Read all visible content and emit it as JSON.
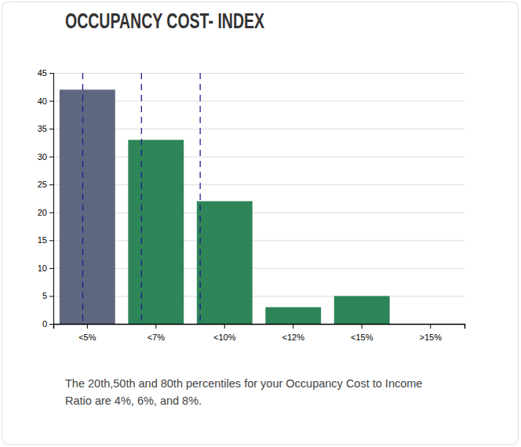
{
  "chart_data": {
    "type": "bar",
    "title": "OCCUPANCY COST- INDEX",
    "categories": [
      "<5%",
      "<7%",
      "<10%",
      "<12%",
      "<15%",
      ">15%"
    ],
    "values": [
      42,
      33,
      22,
      3,
      5,
      0
    ],
    "colors": [
      "#5f6780",
      "#2e8558",
      "#2e8558",
      "#2e8558",
      "#2e8558",
      "#2e8558"
    ],
    "ylim": [
      0,
      45
    ],
    "yticks": [
      0,
      5,
      10,
      15,
      20,
      25,
      30,
      35,
      40,
      45
    ],
    "grid": true,
    "xlim": [
      3,
      17
    ],
    "percentile_lines": [
      4,
      6,
      8
    ],
    "annotations": [
      "The 20th,50th and 80th percentiles for your Occupancy Cost to Income",
      "Ratio are 4%, 6%, and 8%."
    ]
  }
}
